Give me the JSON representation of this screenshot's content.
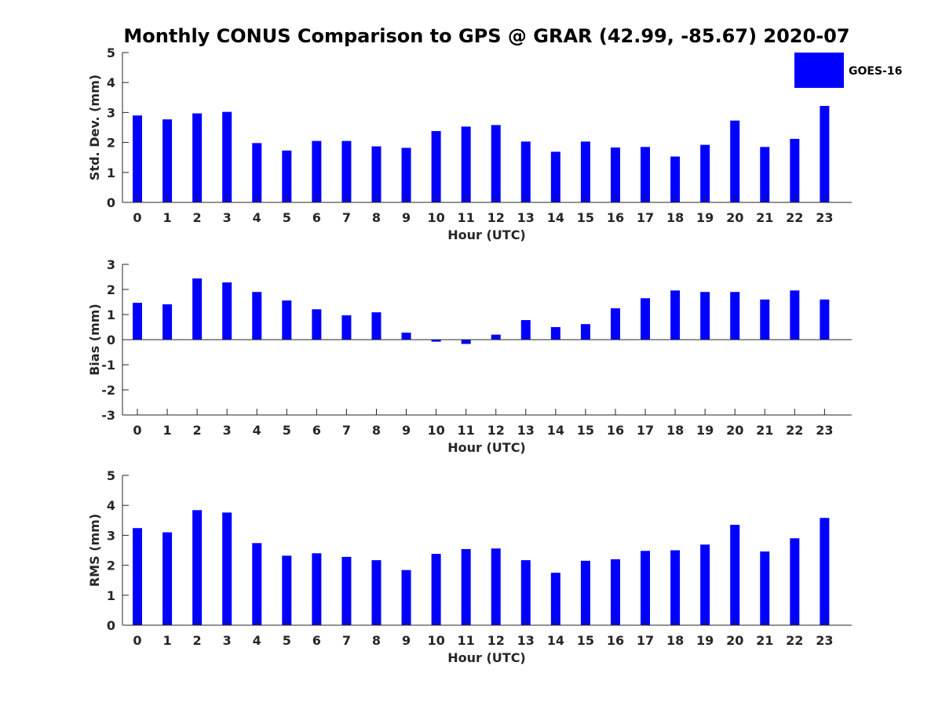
{
  "figure": {
    "title": "Monthly CONUS Comparison to GPS @ GRAR (42.99, -85.67) 2020-07",
    "legend": {
      "label": "GOES-16",
      "color": "#0000ff",
      "placement": "top-right"
    }
  },
  "chart_data": [
    {
      "type": "bar",
      "xlabel": "Hour (UTC)",
      "ylabel": "Std. Dev. (mm)",
      "ylim": [
        0,
        5
      ],
      "yticks": [
        0,
        1,
        2,
        3,
        4,
        5
      ],
      "categories": [
        "0",
        "1",
        "2",
        "3",
        "4",
        "5",
        "6",
        "7",
        "8",
        "9",
        "10",
        "11",
        "12",
        "13",
        "14",
        "15",
        "16",
        "17",
        "18",
        "19",
        "20",
        "21",
        "22",
        "23"
      ],
      "series": [
        {
          "name": "GOES-16",
          "color": "#0000ff",
          "values": [
            2.9,
            2.77,
            2.97,
            3.02,
            1.98,
            1.73,
            2.05,
            2.05,
            1.87,
            1.82,
            2.38,
            2.53,
            2.58,
            2.03,
            1.69,
            2.03,
            1.83,
            1.85,
            1.53,
            1.92,
            2.73,
            1.85,
            2.12,
            3.22
          ]
        }
      ],
      "grid": false
    },
    {
      "type": "bar",
      "xlabel": "Hour (UTC)",
      "ylabel": "Bias (mm)",
      "ylim": [
        -3,
        3
      ],
      "yticks": [
        -3,
        -2,
        -1,
        0,
        1,
        2,
        3
      ],
      "categories": [
        "0",
        "1",
        "2",
        "3",
        "4",
        "5",
        "6",
        "7",
        "8",
        "9",
        "10",
        "11",
        "12",
        "13",
        "14",
        "15",
        "16",
        "17",
        "18",
        "19",
        "20",
        "21",
        "22",
        "23"
      ],
      "series": [
        {
          "name": "GOES-16",
          "color": "#0000ff",
          "values": [
            1.47,
            1.41,
            2.44,
            2.28,
            1.9,
            1.56,
            1.21,
            0.97,
            1.09,
            0.28,
            -0.08,
            -0.17,
            0.2,
            0.78,
            0.5,
            0.62,
            1.25,
            1.65,
            1.96,
            1.9,
            1.9,
            1.6,
            1.96,
            1.6
          ]
        }
      ],
      "grid": false
    },
    {
      "type": "bar",
      "xlabel": "Hour (UTC)",
      "ylabel": "RMS (mm)",
      "ylim": [
        0,
        5
      ],
      "yticks": [
        0,
        1,
        2,
        3,
        4,
        5
      ],
      "categories": [
        "0",
        "1",
        "2",
        "3",
        "4",
        "5",
        "6",
        "7",
        "8",
        "9",
        "10",
        "11",
        "12",
        "13",
        "14",
        "15",
        "16",
        "17",
        "18",
        "19",
        "20",
        "21",
        "22",
        "23"
      ],
      "series": [
        {
          "name": "GOES-16",
          "color": "#0000ff",
          "values": [
            3.24,
            3.1,
            3.84,
            3.76,
            2.74,
            2.32,
            2.4,
            2.28,
            2.17,
            1.84,
            2.38,
            2.54,
            2.56,
            2.17,
            1.75,
            2.15,
            2.2,
            2.48,
            2.5,
            2.69,
            3.35,
            2.46,
            2.9,
            3.58
          ]
        }
      ],
      "grid": false
    }
  ]
}
